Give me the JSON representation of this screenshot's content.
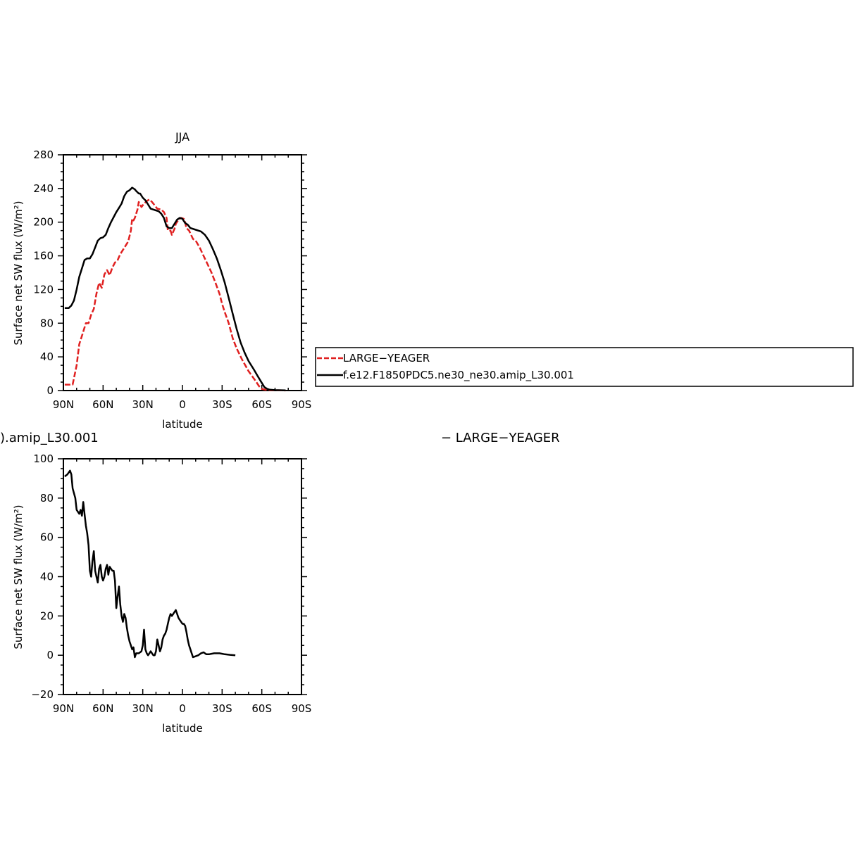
{
  "chart_data": [
    {
      "type": "line",
      "title": "JJA",
      "xlabel": "latitude",
      "ylabel": "Surface net SW flux (W/m²)",
      "xlim": [
        90,
        -90
      ],
      "ylim": [
        0,
        280
      ],
      "xticks": [
        {
          "value": 90,
          "label": "90N"
        },
        {
          "value": 60,
          "label": "60N"
        },
        {
          "value": 30,
          "label": "30N"
        },
        {
          "value": 0,
          "label": "0"
        },
        {
          "value": -30,
          "label": "30S"
        },
        {
          "value": -60,
          "label": "60S"
        },
        {
          "value": -90,
          "label": "90S"
        }
      ],
      "yticks": [
        {
          "value": 0,
          "label": "0"
        },
        {
          "value": 40,
          "label": "40"
        },
        {
          "value": 80,
          "label": "80"
        },
        {
          "value": 120,
          "label": "120"
        },
        {
          "value": 160,
          "label": "160"
        },
        {
          "value": 200,
          "label": "200"
        },
        {
          "value": 240,
          "label": "240"
        },
        {
          "value": 280,
          "label": "280"
        }
      ],
      "series": [
        {
          "name": "LARGE−YEAGER",
          "color": "#e02020",
          "dash": "dashed",
          "points": [
            [
              89,
              7
            ],
            [
              85,
              7
            ],
            [
              83,
              7
            ],
            [
              80,
              30
            ],
            [
              78,
              55
            ],
            [
              75,
              70
            ],
            [
              73,
              80
            ],
            [
              71,
              80
            ],
            [
              69,
              90
            ],
            [
              67,
              97
            ],
            [
              65,
              115
            ],
            [
              63,
              128
            ],
            [
              61,
              122
            ],
            [
              59,
              138
            ],
            [
              57,
              143
            ],
            [
              55,
              137
            ],
            [
              53,
              146
            ],
            [
              51,
              152
            ],
            [
              49,
              155
            ],
            [
              47,
              162
            ],
            [
              45,
              167
            ],
            [
              43,
              172
            ],
            [
              41,
              177
            ],
            [
              39,
              190
            ],
            [
              38,
              204
            ],
            [
              37,
              202
            ],
            [
              36,
              205
            ],
            [
              34,
              215
            ],
            [
              33,
              224
            ],
            [
              31,
              218
            ],
            [
              29,
              222
            ],
            [
              27,
              225
            ],
            [
              25,
              227
            ],
            [
              23,
              224
            ],
            [
              21,
              220
            ],
            [
              19,
              216
            ],
            [
              16,
              215
            ],
            [
              14,
              212
            ],
            [
              12,
              205
            ],
            [
              11,
              190
            ],
            [
              9,
              190
            ],
            [
              8,
              185
            ],
            [
              6,
              192
            ],
            [
              5,
              198
            ],
            [
              3,
              203
            ],
            [
              1,
              205
            ],
            [
              -1,
              204
            ],
            [
              -2,
              200
            ],
            [
              -3,
              193
            ],
            [
              -5,
              190
            ],
            [
              -8,
              180
            ],
            [
              -10,
              178
            ],
            [
              -13,
              170
            ],
            [
              -16,
              160
            ],
            [
              -19,
              150
            ],
            [
              -22,
              140
            ],
            [
              -25,
              128
            ],
            [
              -28,
              115
            ],
            [
              -30,
              103
            ],
            [
              -32,
              93
            ],
            [
              -35,
              80
            ],
            [
              -38,
              62
            ],
            [
              -41,
              50
            ],
            [
              -45,
              37
            ],
            [
              -50,
              23
            ],
            [
              -55,
              12
            ],
            [
              -58,
              5
            ],
            [
              -60,
              2
            ],
            [
              -64,
              0.5
            ],
            [
              -70,
              0.3
            ],
            [
              -78,
              0.1
            ]
          ]
        },
        {
          "name": "f.e12.F1850PDC5.ne30_ne30.amip_L30.001",
          "color": "#000000",
          "dash": "solid",
          "points": [
            [
              89,
              98
            ],
            [
              86,
              98
            ],
            [
              84,
              101
            ],
            [
              82,
              107
            ],
            [
              80,
              120
            ],
            [
              78,
              135
            ],
            [
              76,
              145
            ],
            [
              74,
              155
            ],
            [
              72,
              157
            ],
            [
              70,
              157
            ],
            [
              68,
              162
            ],
            [
              66,
              170
            ],
            [
              64,
              178
            ],
            [
              62,
              181
            ],
            [
              60,
              182
            ],
            [
              58,
              185
            ],
            [
              56,
              193
            ],
            [
              54,
              200
            ],
            [
              52,
              206
            ],
            [
              50,
              212
            ],
            [
              48,
              217
            ],
            [
              46,
              222
            ],
            [
              44,
              231
            ],
            [
              42,
              236
            ],
            [
              40,
              238
            ],
            [
              38,
              241
            ],
            [
              36,
              239
            ],
            [
              35,
              237
            ],
            [
              33,
              234
            ],
            [
              32,
              234
            ],
            [
              30,
              229
            ],
            [
              28,
              226
            ],
            [
              26,
              221
            ],
            [
              24,
              216
            ],
            [
              22,
              215
            ],
            [
              20,
              214
            ],
            [
              18,
              213
            ],
            [
              16,
              210
            ],
            [
              14,
              205
            ],
            [
              12,
              195
            ],
            [
              10,
              193
            ],
            [
              8,
              193
            ],
            [
              6,
              198
            ],
            [
              4,
              203
            ],
            [
              2,
              205
            ],
            [
              0,
              204
            ],
            [
              -2,
              199
            ],
            [
              -4,
              197
            ],
            [
              -6,
              193
            ],
            [
              -10,
              191
            ],
            [
              -14,
              189
            ],
            [
              -17,
              185
            ],
            [
              -20,
              178
            ],
            [
              -23,
              168
            ],
            [
              -26,
              157
            ],
            [
              -29,
              143
            ],
            [
              -32,
              128
            ],
            [
              -35,
              110
            ],
            [
              -38,
              91
            ],
            [
              -41,
              73
            ],
            [
              -44,
              57
            ],
            [
              -47,
              45
            ],
            [
              -50,
              35
            ],
            [
              -54,
              25
            ],
            [
              -57,
              17
            ],
            [
              -60,
              9
            ],
            [
              -62,
              4
            ],
            [
              -64,
              2
            ],
            [
              -66,
              1
            ],
            [
              -70,
              0.5
            ],
            [
              -78,
              0.2
            ]
          ]
        }
      ],
      "legend": {
        "placement": "right",
        "entries": [
          {
            "label": "LARGE−YEAGER",
            "color": "#e02020",
            "dash": "dashed"
          },
          {
            "label": "f.e12.F1850PDC5.ne30_ne30.amip_L30.001",
            "color": "#000000",
            "dash": "solid"
          }
        ]
      }
    },
    {
      "type": "line",
      "title_left": ").amip_L30.001",
      "title_right": "− LARGE−YEAGER",
      "xlabel": "latitude",
      "ylabel": "Surface net SW flux (W/m²)",
      "xlim": [
        90,
        -90
      ],
      "ylim": [
        -20,
        100
      ],
      "xticks": [
        {
          "value": 90,
          "label": "90N"
        },
        {
          "value": 60,
          "label": "60N"
        },
        {
          "value": 30,
          "label": "30N"
        },
        {
          "value": 0,
          "label": "0"
        },
        {
          "value": -30,
          "label": "30S"
        },
        {
          "value": -60,
          "label": "60S"
        },
        {
          "value": -90,
          "label": "90S"
        }
      ],
      "yticks": [
        {
          "value": -20,
          "label": "−20"
        },
        {
          "value": 0,
          "label": "0"
        },
        {
          "value": 20,
          "label": "20"
        },
        {
          "value": 40,
          "label": "40"
        },
        {
          "value": 60,
          "label": "60"
        },
        {
          "value": 80,
          "label": "80"
        },
        {
          "value": 100,
          "label": "100"
        }
      ],
      "series": [
        {
          "color": "#000000",
          "dash": "solid",
          "points": [
            [
              89,
              91
            ],
            [
              87,
              92
            ],
            [
              85,
              94
            ],
            [
              84,
              92
            ],
            [
              83,
              85
            ],
            [
              81,
              80
            ],
            [
              80,
              74
            ],
            [
              78,
              72
            ],
            [
              77,
              74
            ],
            [
              76,
              71
            ],
            [
              75,
              78
            ],
            [
              74,
              72
            ],
            [
              73,
              66
            ],
            [
              72,
              62
            ],
            [
              71,
              56
            ],
            [
              70,
              43
            ],
            [
              69,
              40
            ],
            [
              68,
              48
            ],
            [
              67,
              53
            ],
            [
              66,
              43
            ],
            [
              65,
              40
            ],
            [
              64,
              37
            ],
            [
              63,
              44
            ],
            [
              62,
              46
            ],
            [
              61,
              40
            ],
            [
              60,
              38
            ],
            [
              59,
              40
            ],
            [
              58,
              44
            ],
            [
              57,
              46
            ],
            [
              56,
              41
            ],
            [
              55,
              45
            ],
            [
              54,
              44
            ],
            [
              53,
              43
            ],
            [
              52,
              43
            ],
            [
              51,
              38
            ],
            [
              50,
              24
            ],
            [
              49,
              30
            ],
            [
              48,
              35
            ],
            [
              47,
              26
            ],
            [
              46,
              20
            ],
            [
              45,
              17
            ],
            [
              44,
              21
            ],
            [
              43,
              19
            ],
            [
              42,
              14
            ],
            [
              41,
              10
            ],
            [
              40,
              7
            ],
            [
              39,
              5
            ],
            [
              38,
              3
            ],
            [
              37,
              4
            ],
            [
              36,
              -1
            ],
            [
              35,
              1
            ],
            [
              33,
              1
            ],
            [
              31,
              2
            ],
            [
              30,
              5
            ],
            [
              29,
              13
            ],
            [
              28,
              3
            ],
            [
              27,
              1
            ],
            [
              26,
              0
            ],
            [
              25,
              1
            ],
            [
              24,
              2
            ],
            [
              23,
              1
            ],
            [
              22,
              0
            ],
            [
              21,
              0
            ],
            [
              20,
              2
            ],
            [
              19,
              8
            ],
            [
              18,
              5
            ],
            [
              17,
              2
            ],
            [
              16,
              4
            ],
            [
              15,
              8
            ],
            [
              14,
              10
            ],
            [
              13,
              11
            ],
            [
              12,
              13
            ],
            [
              11,
              16
            ],
            [
              10,
              19
            ],
            [
              9,
              21
            ],
            [
              8,
              20
            ],
            [
              7,
              21
            ],
            [
              6,
              22
            ],
            [
              5,
              23
            ],
            [
              4,
              21
            ],
            [
              3,
              19
            ],
            [
              2,
              18
            ],
            [
              1,
              17
            ],
            [
              0,
              16
            ],
            [
              -1,
              16
            ],
            [
              -2,
              15
            ],
            [
              -3,
              12
            ],
            [
              -4,
              8
            ],
            [
              -5,
              5
            ],
            [
              -6,
              3
            ],
            [
              -7,
              1
            ],
            [
              -8,
              -1
            ],
            [
              -10,
              -0.5
            ],
            [
              -12,
              0
            ],
            [
              -14,
              1
            ],
            [
              -16,
              1.5
            ],
            [
              -18,
              0.5
            ],
            [
              -20,
              0.5
            ],
            [
              -24,
              1
            ],
            [
              -28,
              1
            ],
            [
              -32,
              0.5
            ],
            [
              -36,
              0.2
            ],
            [
              -40,
              0
            ]
          ]
        }
      ]
    }
  ]
}
